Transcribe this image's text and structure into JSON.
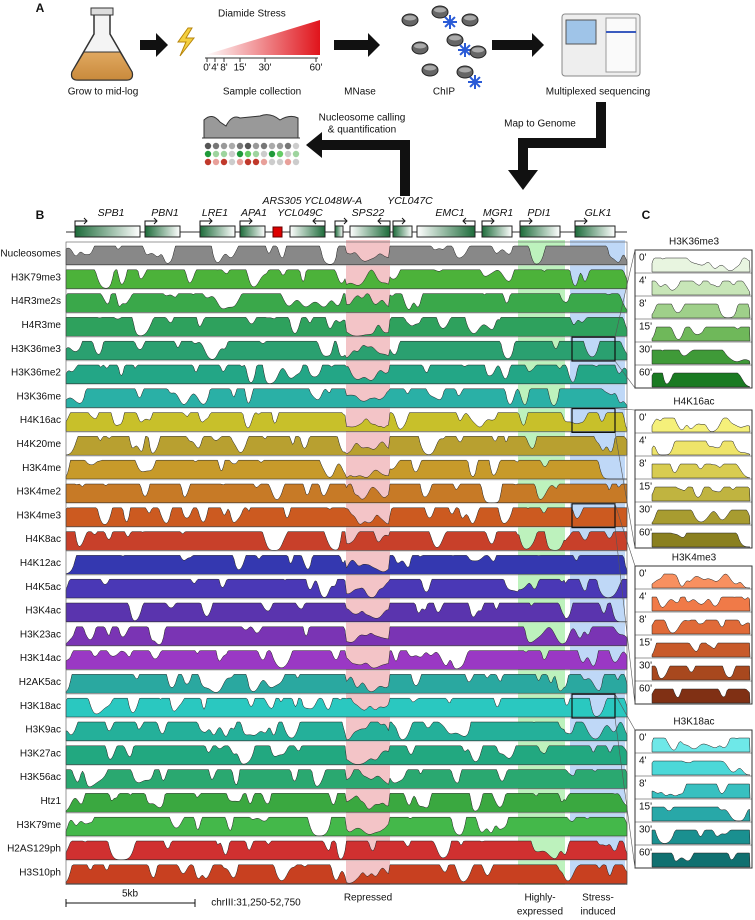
{
  "panel_a": {
    "label": "A",
    "growth": "Grow to mid-log",
    "stress": "Diamide Stress",
    "timepoints": [
      "0'",
      "4'",
      "8'",
      "15'",
      "30'",
      "60'"
    ],
    "collection": "Sample collection",
    "digestion": "MNase",
    "chip": "ChIP",
    "sequencing": "Multiplexed sequencing",
    "mapping": "Map to Genome",
    "calling": [
      "Nucleosome calling",
      "& quantification"
    ]
  },
  "panel_b": {
    "label": "B",
    "genes": [
      "SPB1",
      "PBN1",
      "LRE1",
      "APA1",
      "ARS305",
      "YCL049C",
      "YCL048W-A",
      "SPS22",
      "YCL047C",
      "EMC1",
      "MGR1",
      "PDI1",
      "GLK1"
    ],
    "tracks": [
      "Nucleosomes",
      "H3K79me3",
      "H4R3me2s",
      "H4R3me",
      "H3K36me3",
      "H3K36me2",
      "H3K36me",
      "H4K16ac",
      "H4K20me",
      "H3K4me",
      "H3K4me2",
      "H3K4me3",
      "H4K8ac",
      "H4K12ac",
      "H4K5ac",
      "H3K4ac",
      "H3K23ac",
      "H3K14ac",
      "H2AK5ac",
      "H3K18ac",
      "H3K9ac",
      "H3K27ac",
      "H3K56ac",
      "Htz1",
      "H3K79me",
      "H2AS129ph",
      "H3S10ph"
    ],
    "regions": [
      {
        "lines": [
          "Repressed"
        ]
      },
      {
        "lines": [
          "Highly-",
          "expressed"
        ]
      },
      {
        "lines": [
          "Stress-",
          "induced"
        ]
      }
    ],
    "scale": "5kb",
    "coordinates": "chrIII:31,250-52,750"
  },
  "panel_c": {
    "label": "C",
    "times": [
      "0'",
      "4'",
      "8'",
      "15'",
      "30'",
      "60'"
    ],
    "groups": [
      "H3K36me3",
      "H4K16ac",
      "H3K4me3",
      "H3K18ac"
    ]
  }
}
